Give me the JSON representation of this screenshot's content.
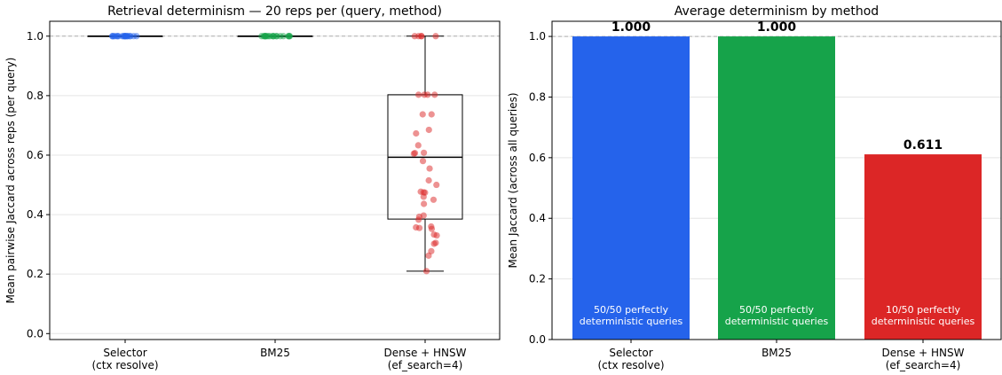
{
  "chart_data": [
    {
      "type": "box",
      "title": "Retrieval determinism — 20 reps per (query, method)",
      "xlabel": "",
      "ylabel": "Mean pairwise Jaccard across reps (per query)",
      "ylim": [
        -0.02,
        1.05
      ],
      "yticks": [
        "0.0",
        "0.2",
        "0.4",
        "0.6",
        "0.8",
        "1.0"
      ],
      "reference_line": 1.0,
      "grid": "y",
      "categories": [
        {
          "label": "Selector",
          "sublabel": "(ctx resolve)",
          "color": "#2563eb"
        },
        {
          "label": "BM25",
          "sublabel": "",
          "color": "#16a34a"
        },
        {
          "label": "Dense + HNSW",
          "sublabel": "(ef_search=4)",
          "color": "#dc2626"
        }
      ],
      "boxes": [
        {
          "min": 1.0,
          "q1": 1.0,
          "median": 1.0,
          "q3": 1.0,
          "max": 1.0
        },
        {
          "min": 1.0,
          "q1": 1.0,
          "median": 1.0,
          "q3": 1.0,
          "max": 1.0
        },
        {
          "min": 0.21,
          "q1": 0.385,
          "median": 0.593,
          "q3": 0.803,
          "max": 1.0
        }
      ],
      "points": [
        [
          1.0,
          1.0,
          1.0,
          1.0,
          1.0,
          1.0,
          1.0,
          1.0,
          1.0,
          1.0,
          1.0,
          1.0,
          1.0,
          1.0,
          1.0,
          1.0,
          1.0,
          1.0,
          1.0,
          1.0
        ],
        [
          1.0,
          1.0,
          1.0,
          1.0,
          1.0,
          1.0,
          1.0,
          1.0,
          1.0,
          1.0,
          1.0,
          1.0,
          1.0,
          1.0,
          1.0,
          1.0,
          1.0,
          1.0,
          1.0,
          1.0
        ],
        [
          1.0,
          1.0,
          1.0,
          1.0,
          1.0,
          0.803,
          0.803,
          0.803,
          0.803,
          0.737,
          0.737,
          0.685,
          0.673,
          0.633,
          0.608,
          0.607,
          0.605,
          0.58,
          0.555,
          0.515,
          0.5,
          0.477,
          0.475,
          0.474,
          0.46,
          0.45,
          0.436,
          0.397,
          0.393,
          0.383,
          0.36,
          0.357,
          0.355,
          0.352,
          0.333,
          0.33,
          0.305,
          0.302,
          0.277,
          0.262,
          0.21
        ]
      ]
    },
    {
      "type": "bar",
      "title": "Average determinism by method",
      "xlabel": "",
      "ylabel": "Mean Jaccard (across all queries)",
      "ylim": [
        0.0,
        1.05
      ],
      "yticks": [
        "0.0",
        "0.2",
        "0.4",
        "0.6",
        "0.8",
        "1.0"
      ],
      "reference_line": 1.0,
      "grid": "y",
      "categories": [
        {
          "label": "Selector",
          "sublabel": "(ctx resolve)"
        },
        {
          "label": "BM25",
          "sublabel": ""
        },
        {
          "label": "Dense + HNSW",
          "sublabel": "(ef_search=4)"
        }
      ],
      "values": [
        1.0,
        1.0,
        0.611
      ],
      "value_labels": [
        "1.000",
        "1.000",
        "0.611"
      ],
      "colors": [
        "#2563eb",
        "#16a34a",
        "#dc2626"
      ],
      "inner_labels": [
        [
          "50/50 perfectly",
          "deterministic queries"
        ],
        [
          "50/50 perfectly",
          "deterministic queries"
        ],
        [
          "10/50 perfectly",
          "deterministic queries"
        ]
      ]
    }
  ]
}
